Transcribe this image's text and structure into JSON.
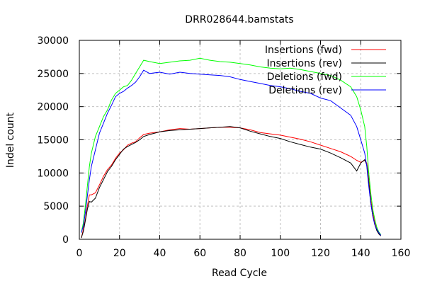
{
  "chart_data": {
    "type": "line",
    "title": "DRR028644.bamstats",
    "xlabel": "Read Cycle",
    "ylabel": "Indel count",
    "xlim": [
      0,
      160
    ],
    "ylim": [
      0,
      30000
    ],
    "xticks": [
      0,
      20,
      40,
      60,
      80,
      100,
      120,
      140,
      160
    ],
    "yticks": [
      0,
      5000,
      10000,
      15000,
      20000,
      25000,
      30000
    ],
    "grid": true,
    "legend_position": "top-right",
    "x": [
      1,
      2,
      3,
      4,
      5,
      6,
      8,
      10,
      12,
      14,
      16,
      18,
      20,
      22,
      24,
      26,
      28,
      30,
      32,
      35,
      40,
      45,
      50,
      55,
      60,
      65,
      70,
      75,
      80,
      85,
      90,
      95,
      100,
      105,
      110,
      115,
      120,
      125,
      130,
      135,
      138,
      140,
      142,
      143,
      144,
      145,
      146,
      147,
      148,
      149,
      150
    ],
    "series": [
      {
        "name": "Insertions (fwd)",
        "color": "#ff0000",
        "values": [
          200,
          1500,
          3000,
          5000,
          6700,
          6700,
          7000,
          8200,
          9500,
          10500,
          11200,
          12200,
          13000,
          13500,
          14200,
          14500,
          14700,
          15300,
          15800,
          16000,
          16200,
          16500,
          16700,
          16600,
          16700,
          16800,
          16900,
          16900,
          16800,
          16500,
          16100,
          15900,
          15700,
          15400,
          15100,
          14700,
          14200,
          13700,
          13200,
          12500,
          11900,
          11600,
          11900,
          11500,
          9000,
          6000,
          4000,
          2500,
          1500,
          900,
          600
        ]
      },
      {
        "name": "Insertions (rev)",
        "color": "#000000",
        "values": [
          200,
          1200,
          2800,
          4500,
          5700,
          5600,
          6200,
          7800,
          9000,
          10200,
          11000,
          12000,
          12800,
          13600,
          14000,
          14300,
          14600,
          15000,
          15500,
          15800,
          16200,
          16400,
          16500,
          16600,
          16700,
          16800,
          16900,
          17000,
          16800,
          16300,
          15900,
          15500,
          15200,
          14700,
          14300,
          13900,
          13600,
          13000,
          12300,
          11500,
          10300,
          11500,
          12000,
          11200,
          8500,
          5500,
          3500,
          2200,
          1300,
          800,
          500
        ]
      },
      {
        "name": "Deletions (fwd)",
        "color": "#00ff00",
        "values": [
          1000,
          2500,
          5000,
          8000,
          11000,
          13000,
          15500,
          17000,
          18500,
          19500,
          21000,
          22000,
          22500,
          23000,
          23200,
          24000,
          25000,
          26000,
          27000,
          26800,
          26500,
          26700,
          26900,
          27000,
          27300,
          27000,
          26800,
          26700,
          26500,
          26300,
          26000,
          25800,
          25700,
          25800,
          25600,
          25300,
          25000,
          24700,
          24000,
          23000,
          21500,
          19500,
          17000,
          14000,
          10000,
          7000,
          4500,
          3000,
          1800,
          1100,
          700
        ]
      },
      {
        "name": "Deletions (rev)",
        "color": "#0000ff",
        "values": [
          1000,
          2000,
          4000,
          6500,
          9000,
          11000,
          13500,
          16000,
          17500,
          19000,
          20200,
          21500,
          22000,
          22300,
          22800,
          23200,
          23700,
          24500,
          25500,
          25000,
          25200,
          24900,
          25200,
          25000,
          24900,
          24800,
          24700,
          24500,
          24100,
          23800,
          23500,
          23200,
          23000,
          22700,
          22300,
          22000,
          21300,
          20900,
          19800,
          18700,
          17000,
          15000,
          13000,
          11000,
          8000,
          5500,
          3500,
          2200,
          1500,
          1000,
          600
        ]
      }
    ]
  }
}
